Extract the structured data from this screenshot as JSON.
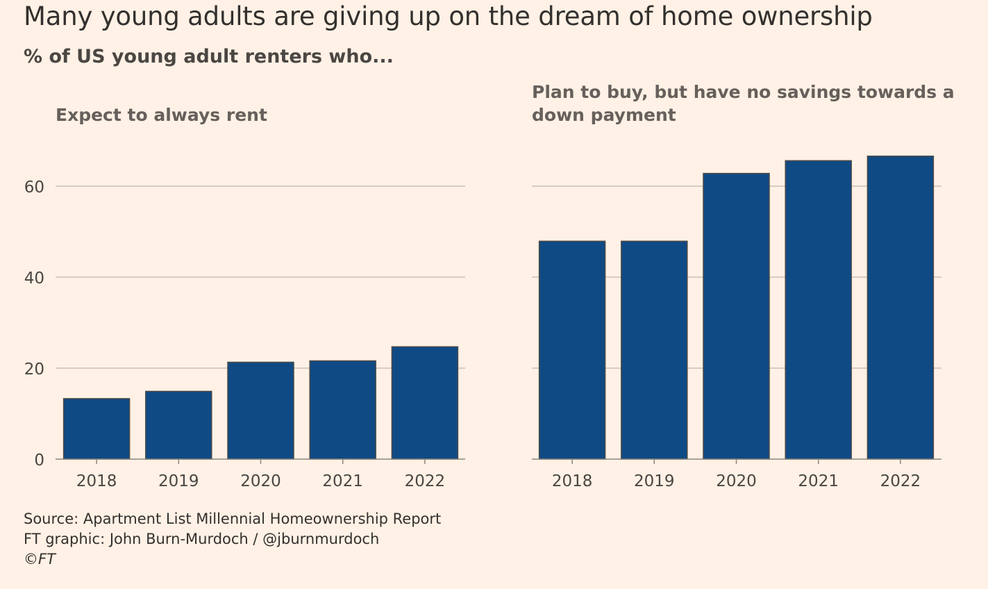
{
  "header": {
    "title": "Many young adults are giving up on the dream of home ownership",
    "subtitle": "% of US young adult renters who..."
  },
  "colors": {
    "background": "#fff1e5",
    "bar_fill": "#0f4a85",
    "bar_stroke": "#4d4a47",
    "gridline": "#ccc1b7",
    "axis_text": "#4a4643"
  },
  "chart_data": [
    {
      "type": "bar",
      "title": "Expect to always rent",
      "categories": [
        "2018",
        "2019",
        "2020",
        "2021",
        "2022"
      ],
      "values": [
        13.3,
        14.9,
        21.3,
        21.6,
        24.7
      ],
      "ylim": [
        0,
        70
      ],
      "yticks": [
        0,
        20,
        40,
        60
      ],
      "show_ytick_labels": true,
      "grid": true
    },
    {
      "type": "bar",
      "title": "Plan to buy, but have no savings towards a down payment",
      "categories": [
        "2018",
        "2019",
        "2020",
        "2021",
        "2022"
      ],
      "values": [
        47.9,
        47.9,
        62.8,
        65.6,
        66.6
      ],
      "ylim": [
        0,
        70
      ],
      "yticks": [
        0,
        20,
        40,
        60
      ],
      "show_ytick_labels": false,
      "grid": true
    }
  ],
  "footer": {
    "source": "Source: Apartment List Millennial Homeownership Report",
    "credit": "FT graphic: John Burn-Murdoch / @jburnmurdoch",
    "copyright": "©FT"
  }
}
